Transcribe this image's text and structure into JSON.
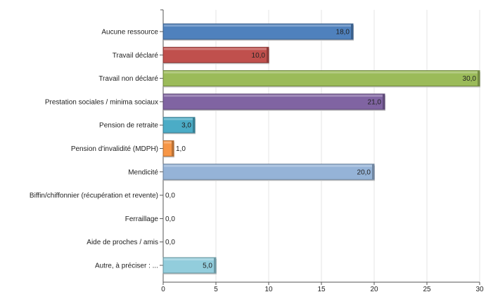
{
  "chart_data": {
    "type": "bar",
    "orientation": "horizontal",
    "categories": [
      "Aucune ressource",
      "Travail déclaré",
      "Travail non déclaré",
      "Prestation sociales / minima sociaux",
      "Pension de retraite",
      "Pension d'invalidité (MDPH)",
      "Mendicité",
      "Biffin/chiffonnier (récupération et revente)",
      "Ferraillage",
      "Aide de proches / amis",
      "Autre, à préciser : ..."
    ],
    "values": [
      18,
      10,
      30,
      21,
      3,
      1,
      20,
      0,
      0,
      0,
      5
    ],
    "value_labels": [
      "18,0",
      "10,0",
      "30,0",
      "21,0",
      "3,0",
      "1,0",
      "20,0",
      "0,0",
      "0,0",
      "0,0",
      "5,0"
    ],
    "colors": [
      "#4f81bd",
      "#c0504d",
      "#9bbb59",
      "#8064a2",
      "#4bacc6",
      "#f79646",
      "#95b3d7",
      "#999999",
      "#999999",
      "#999999",
      "#92cddc"
    ],
    "xlim": [
      0,
      30
    ],
    "xticks": [
      "0",
      "5",
      "10",
      "15",
      "20",
      "25",
      "30"
    ],
    "grid": true,
    "title": "",
    "xlabel": "",
    "ylabel": ""
  }
}
